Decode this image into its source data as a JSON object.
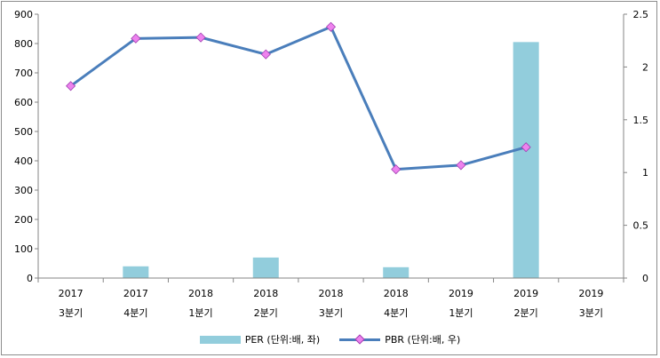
{
  "chart_data": {
    "type": "bar+line",
    "categories": [
      [
        "2017",
        "3분기"
      ],
      [
        "2017",
        "4분기"
      ],
      [
        "2018",
        "1분기"
      ],
      [
        "2018",
        "2분기"
      ],
      [
        "2018",
        "3분기"
      ],
      [
        "2018",
        "4분기"
      ],
      [
        "2019",
        "1분기"
      ],
      [
        "2019",
        "2분기"
      ],
      [
        "2019",
        "3분기"
      ]
    ],
    "series": [
      {
        "name": "PER (단위:배, 좌)",
        "type": "bar",
        "axis": "left",
        "color": "#92cddc",
        "values": [
          null,
          40,
          null,
          70,
          null,
          37,
          null,
          805,
          null
        ]
      },
      {
        "name": "PBR (단위:배, 우)",
        "type": "line",
        "axis": "right",
        "color": "#4a7ebb",
        "marker_color": "#ee82ee",
        "values": [
          1.82,
          2.27,
          2.28,
          2.12,
          2.38,
          1.03,
          1.07,
          1.24,
          null
        ]
      }
    ],
    "y_left": {
      "min": 0,
      "max": 900,
      "ticks": [
        "0",
        "100",
        "200",
        "300",
        "400",
        "500",
        "600",
        "700",
        "800",
        "900"
      ]
    },
    "y_right": {
      "min": 0,
      "max": 2.5,
      "ticks": [
        "0",
        "0.5",
        "1",
        "1.5",
        "2",
        "2.5"
      ]
    },
    "grid": false,
    "legend": "bottom"
  }
}
